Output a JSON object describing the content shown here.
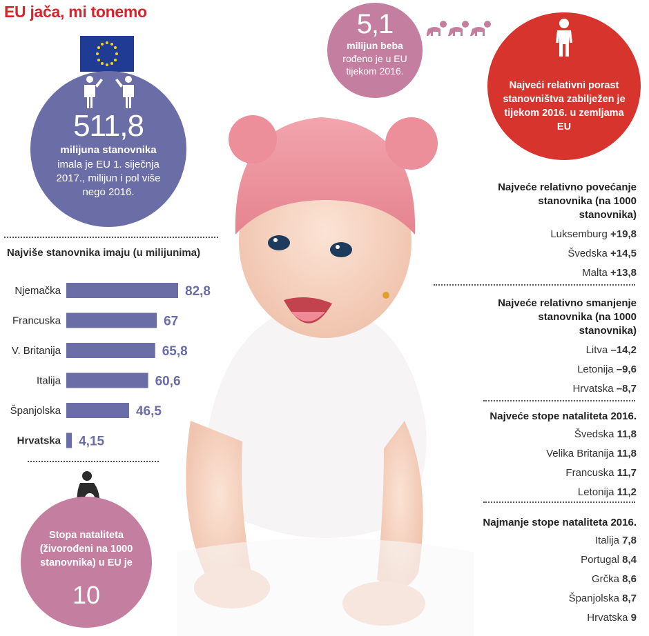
{
  "title": "EU jača, mi tonemo",
  "population": {
    "value": "511,8",
    "bold": "milijuna stanovnika",
    "sub": "imala je EU 1. siječnja 2017., milijun i pol više nego 2016."
  },
  "births": {
    "value": "5,1",
    "bold": "milijun beba",
    "sub": "rođeno je u EU tijekom 2016."
  },
  "growth_note": "Najveći relativni porast stanovništva zabilježen je tijekom 2016. u zemljama EU",
  "natality": {
    "text": "Stopa nataliteta (živorođeni na 1000 stanovnika) u EU je",
    "value": "10"
  },
  "chart_data": {
    "type": "bar",
    "title": "Najviše stanovnika imaju (u milijunima)",
    "categories": [
      "Njemačka",
      "Francuska",
      "V. Britanija",
      "Italija",
      "Španjolska",
      "Hrvatska"
    ],
    "values": [
      82.8,
      67,
      65.8,
      60.6,
      46.5,
      4.15
    ],
    "value_labels": [
      "82,8",
      "67",
      "65,8",
      "60,6",
      "46,5",
      "4,15"
    ],
    "highlight": "Hrvatska",
    "bar_color": "#6b6ea6"
  },
  "increase": {
    "heading": "Najveće relativno povećanje stanovnika (na 1000 stanovnika)",
    "rows": [
      {
        "country": "Luksemburg",
        "value": "+19,8"
      },
      {
        "country": "Švedska",
        "value": "+14,5"
      },
      {
        "country": "Malta",
        "value": "+13,8"
      }
    ]
  },
  "decrease": {
    "heading": "Najveće relativno smanjenje stanovnika (na 1000 stanovnika)",
    "rows": [
      {
        "country": "Litva",
        "value": "–14,2"
      },
      {
        "country": "Letonija",
        "value": "–9,6"
      },
      {
        "country": "Hrvatska",
        "value": "–8,7"
      }
    ]
  },
  "highest_birth": {
    "heading": "Najveće stope nataliteta 2016.",
    "rows": [
      {
        "country": "Švedska",
        "value": "11,8"
      },
      {
        "country": "Velika Britanija",
        "value": "11,8"
      },
      {
        "country": "Francuska",
        "value": "11,7"
      },
      {
        "country": "Letonija",
        "value": "11,2"
      }
    ]
  },
  "lowest_birth": {
    "heading": "Najmanje stope nataliteta 2016.",
    "rows": [
      {
        "country": "Italija",
        "value": "7,8"
      },
      {
        "country": "Portugal",
        "value": "8,4"
      },
      {
        "country": "Grčka",
        "value": "8,6"
      },
      {
        "country": "Španjolska",
        "value": "8,7"
      },
      {
        "country": "Hrvatska",
        "value": "9"
      }
    ]
  },
  "icons": [
    "eu-flag-icon",
    "people-icon",
    "crawling-baby-icon",
    "toddler-icon",
    "pregnant-woman-icon"
  ],
  "colors": {
    "accent": "#d9232a",
    "purple": "#6b6ea6",
    "pink": "#c47ea0",
    "red": "#d8342e"
  }
}
